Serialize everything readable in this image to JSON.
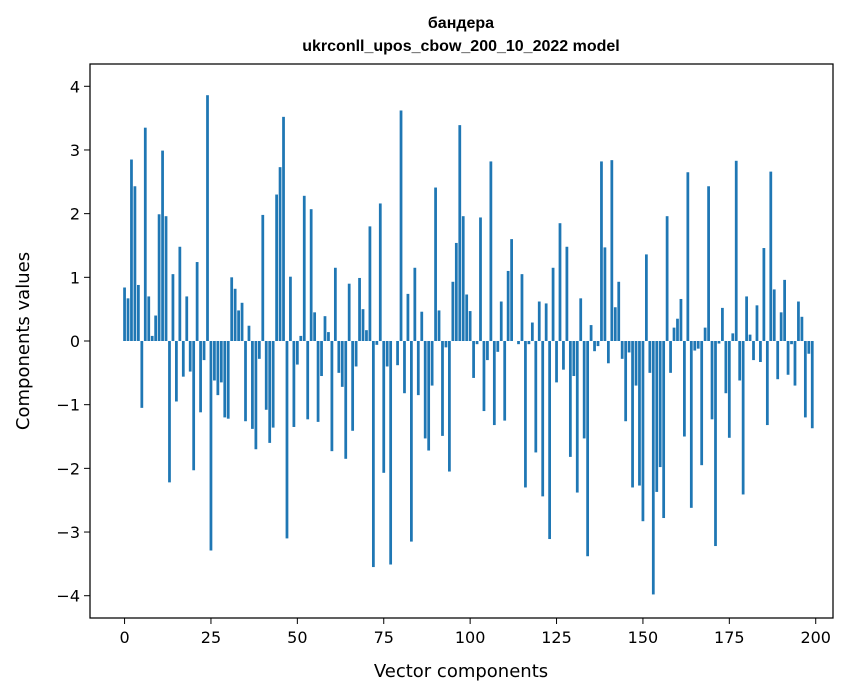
{
  "chart_data": {
    "type": "bar",
    "title": "бандера",
    "subtitle": "ukrconll_upos_cbow_200_10_2022 model",
    "xlabel": "Vector components",
    "ylabel": "Components values",
    "xlim": [
      -10,
      205
    ],
    "ylim": [
      -4.35,
      4.35
    ],
    "x_ticks": [
      0,
      25,
      50,
      75,
      100,
      125,
      150,
      175,
      200
    ],
    "y_ticks": [
      -4,
      -3,
      -2,
      -1,
      0,
      1,
      2,
      3,
      4
    ],
    "x_tick_labels": [
      "0",
      "25",
      "50",
      "75",
      "100",
      "125",
      "150",
      "175",
      "200"
    ],
    "y_tick_labels": [
      "−4",
      "−3",
      "−2",
      "−1",
      "0",
      "1",
      "2",
      "3",
      "4"
    ],
    "bar_color": "#1f77b4",
    "grid": false,
    "x": [
      0,
      1,
      2,
      3,
      4,
      5,
      6,
      7,
      8,
      9,
      10,
      11,
      12,
      13,
      14,
      15,
      16,
      17,
      18,
      19,
      20,
      21,
      22,
      23,
      24,
      25,
      26,
      27,
      28,
      29,
      30,
      31,
      32,
      33,
      34,
      35,
      36,
      37,
      38,
      39,
      40,
      41,
      42,
      43,
      44,
      45,
      46,
      47,
      48,
      49,
      50,
      51,
      52,
      53,
      54,
      55,
      56,
      57,
      58,
      59,
      60,
      61,
      62,
      63,
      64,
      65,
      66,
      67,
      68,
      69,
      70,
      71,
      72,
      73,
      74,
      75,
      76,
      77,
      78,
      79,
      80,
      81,
      82,
      83,
      84,
      85,
      86,
      87,
      88,
      89,
      90,
      91,
      92,
      93,
      94,
      95,
      96,
      97,
      98,
      99,
      100,
      101,
      102,
      103,
      104,
      105,
      106,
      107,
      108,
      109,
      110,
      111,
      112,
      113,
      114,
      115,
      116,
      117,
      118,
      119,
      120,
      121,
      122,
      123,
      124,
      125,
      126,
      127,
      128,
      129,
      130,
      131,
      132,
      133,
      134,
      135,
      136,
      137,
      138,
      139,
      140,
      141,
      142,
      143,
      144,
      145,
      146,
      147,
      148,
      149,
      150,
      151,
      152,
      153,
      154,
      155,
      156,
      157,
      158,
      159,
      160,
      161,
      162,
      163,
      164,
      165,
      166,
      167,
      168,
      169,
      170,
      171,
      172,
      173,
      174,
      175,
      176,
      177,
      178,
      179,
      180,
      181,
      182,
      183,
      184,
      185,
      186,
      187,
      188,
      189,
      190,
      191,
      192,
      193,
      194,
      195,
      196,
      197,
      198,
      199
    ],
    "values": [
      0.84,
      0.67,
      2.85,
      2.43,
      0.88,
      -1.05,
      3.35,
      0.7,
      0.08,
      0.4,
      1.99,
      2.99,
      1.96,
      -2.22,
      1.05,
      -0.95,
      1.48,
      -0.56,
      0.7,
      -0.48,
      -2.03,
      1.24,
      -1.12,
      -0.3,
      3.86,
      -3.29,
      -0.62,
      -0.85,
      -0.65,
      -1.2,
      -1.22,
      1.0,
      0.82,
      0.48,
      0.6,
      -1.26,
      0.24,
      -1.38,
      -1.7,
      -0.28,
      1.98,
      -1.08,
      -1.6,
      -1.36,
      2.3,
      2.73,
      3.52,
      -3.1,
      1.01,
      -1.35,
      -0.37,
      0.08,
      2.28,
      -1.23,
      2.07,
      0.45,
      -1.27,
      -0.55,
      0.39,
      0.14,
      -1.73,
      1.15,
      -0.5,
      -0.72,
      -1.85,
      0.9,
      -1.41,
      -0.4,
      0.99,
      0.5,
      0.17,
      1.8,
      -3.55,
      -0.06,
      2.16,
      -2.07,
      -0.4,
      -3.51,
      0.0,
      -0.38,
      3.62,
      -0.82,
      0.74,
      -3.15,
      1.15,
      -0.85,
      0.46,
      -1.53,
      -1.72,
      -0.7,
      2.41,
      0.48,
      -1.49,
      -0.1,
      -2.05,
      0.93,
      1.54,
      3.39,
      1.96,
      0.73,
      0.47,
      -0.58,
      -0.05,
      1.94,
      -1.1,
      -0.3,
      2.82,
      -1.32,
      -0.17,
      0.62,
      -1.25,
      1.1,
      1.6,
      0.0,
      -0.05,
      1.05,
      -2.3,
      -0.05,
      0.29,
      -1.75,
      0.62,
      -2.44,
      0.59,
      -3.11,
      1.15,
      -0.65,
      1.85,
      -0.45,
      1.48,
      -1.82,
      -0.55,
      -2.38,
      0.67,
      -1.53,
      -3.38,
      0.25,
      -0.16,
      -0.08,
      2.82,
      1.47,
      -0.35,
      2.84,
      0.53,
      0.93,
      -0.28,
      -1.26,
      -0.18,
      -2.3,
      -0.7,
      -2.27,
      -2.83,
      1.36,
      -0.5,
      -3.98,
      -2.37,
      -1.98,
      -2.78,
      1.96,
      -0.5,
      0.21,
      0.35,
      0.66,
      -1.5,
      2.65,
      -2.62,
      -0.15,
      -0.12,
      -1.95,
      0.21,
      2.43,
      -1.23,
      -3.22,
      -0.04,
      0.52,
      -0.82,
      -1.52,
      0.12,
      2.83,
      -0.62,
      -2.41,
      0.7,
      0.1,
      -0.3,
      0.56,
      -0.33,
      1.46,
      -1.32,
      2.66,
      0.81,
      -0.6,
      0.45,
      0.96,
      -0.53,
      -0.05,
      -0.7,
      0.62,
      0.38,
      -1.2,
      -0.2,
      -1.37
    ]
  }
}
